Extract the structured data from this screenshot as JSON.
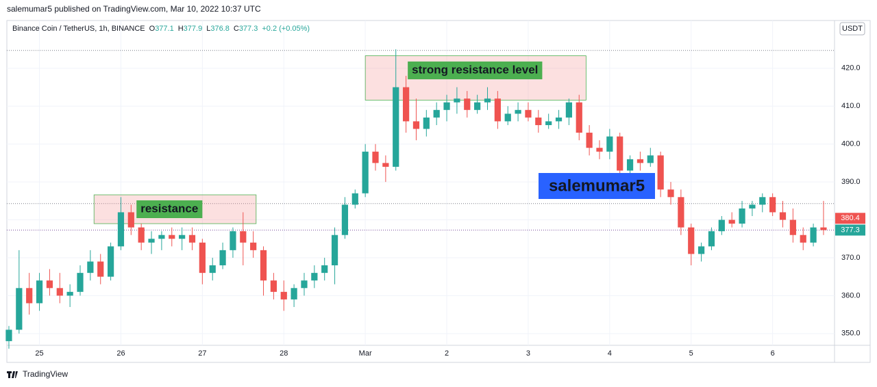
{
  "chart_data": {
    "type": "candlestick",
    "header": "salemumar5 published on TradingView.com, Mar 10, 2022 10:37 UTC",
    "symbol": "Binance Coin / TetherUS, 1h, BINANCE",
    "legend_values": [
      {
        "label": "O",
        "value": "377.1"
      },
      {
        "label": "H",
        "value": "377.9"
      },
      {
        "label": "L",
        "value": "376.8"
      },
      {
        "label": "C",
        "value": "377.3"
      },
      {
        "label": "",
        "value": "+0.2 (+0.05%)"
      }
    ],
    "currency": "USDT",
    "footer": "TradingView",
    "watermark": "salemumar5",
    "up_color": "#26a69a",
    "down_color": "#ef5350",
    "xlim": [
      24.6,
      34.76
    ],
    "xticks": [
      {
        "value": 25,
        "label": "25"
      },
      {
        "value": 26,
        "label": "26"
      },
      {
        "value": 27,
        "label": "27"
      },
      {
        "value": 28,
        "label": "28"
      },
      {
        "value": 29,
        "label": "Mar"
      },
      {
        "value": 30,
        "label": "2"
      },
      {
        "value": 31,
        "label": "3"
      },
      {
        "value": 32,
        "label": "4"
      },
      {
        "value": 33,
        "label": "5"
      },
      {
        "value": 34,
        "label": "6"
      }
    ],
    "ylim": [
      346.9,
      432.6
    ],
    "yticks": [
      {
        "value": 350,
        "label": "350.0"
      },
      {
        "value": 360,
        "label": "360.0"
      },
      {
        "value": 370,
        "label": "370.0"
      },
      {
        "value": 380,
        "label": "380.0"
      },
      {
        "value": 390,
        "label": "390.0"
      },
      {
        "value": 400,
        "label": "400.0"
      },
      {
        "value": 410,
        "label": "410.0"
      },
      {
        "value": 420,
        "label": "420.0"
      }
    ],
    "grid": true,
    "hlines": [
      424.7,
      384.3
    ],
    "last_price_line": 377.3,
    "price_labels": [
      {
        "value": 380.4,
        "color": "#ef5350"
      },
      {
        "value": 377.3,
        "color": "#26a69a"
      }
    ],
    "zones": [
      {
        "label": "strong resistance level",
        "x": [
          29.0,
          31.71
        ],
        "y": [
          411.6,
          423.3
        ]
      },
      {
        "label": "resistance",
        "x": [
          25.67,
          27.66
        ],
        "y": [
          379.0,
          386.6
        ]
      }
    ],
    "x": [
      24.625,
      24.75,
      24.875,
      25.0,
      25.125,
      25.25,
      25.375,
      25.5,
      25.625,
      25.75,
      25.875,
      26.0,
      26.125,
      26.25,
      26.375,
      26.5,
      26.625,
      26.75,
      26.875,
      27.0,
      27.125,
      27.25,
      27.375,
      27.5,
      27.625,
      27.75,
      27.875,
      28.0,
      28.125,
      28.25,
      28.375,
      28.5,
      28.625,
      28.75,
      28.875,
      29.0,
      29.125,
      29.25,
      29.375,
      29.5,
      29.625,
      29.75,
      29.875,
      30.0,
      30.125,
      30.25,
      30.375,
      30.5,
      30.625,
      30.75,
      30.875,
      31.0,
      31.125,
      31.25,
      31.375,
      31.5,
      31.625,
      31.75,
      31.875,
      32.0,
      32.125,
      32.25,
      32.375,
      32.5,
      32.625,
      32.75,
      32.875,
      33.0,
      33.125,
      33.25,
      33.375,
      33.5,
      33.625,
      33.75,
      33.875,
      34.0,
      34.125,
      34.25,
      34.375,
      34.5,
      34.625
    ],
    "ohlc": [
      [
        348,
        352,
        346,
        351
      ],
      [
        351,
        372,
        350,
        362
      ],
      [
        362,
        366,
        355,
        358
      ],
      [
        358,
        366,
        356,
        364
      ],
      [
        364,
        367,
        360,
        362
      ],
      [
        362,
        366,
        358,
        360
      ],
      [
        360,
        363,
        357,
        361
      ],
      [
        361,
        368,
        360,
        366
      ],
      [
        366,
        372,
        364,
        369
      ],
      [
        369,
        371,
        363,
        365
      ],
      [
        365,
        374,
        364,
        373
      ],
      [
        373,
        386,
        372,
        382
      ],
      [
        382,
        384,
        376,
        378
      ],
      [
        378,
        379,
        372,
        374
      ],
      [
        374,
        377,
        371,
        375
      ],
      [
        375,
        377,
        372,
        376
      ],
      [
        376,
        378,
        373,
        375
      ],
      [
        375,
        378,
        372,
        376
      ],
      [
        376,
        378,
        372,
        374
      ],
      [
        374,
        375,
        363,
        366
      ],
      [
        366,
        370,
        364,
        368
      ],
      [
        368,
        374,
        367,
        372
      ],
      [
        372,
        378,
        370,
        377
      ],
      [
        377,
        382,
        368,
        374
      ],
      [
        374,
        377,
        370,
        372
      ],
      [
        372,
        373,
        360,
        364
      ],
      [
        364,
        366,
        359,
        361
      ],
      [
        361,
        364,
        356,
        359
      ],
      [
        359,
        363,
        357,
        362
      ],
      [
        362,
        366,
        360,
        364
      ],
      [
        364,
        368,
        362,
        366
      ],
      [
        366,
        370,
        364,
        368
      ],
      [
        368,
        378,
        363,
        376
      ],
      [
        376,
        386,
        375,
        384
      ],
      [
        384,
        388,
        383,
        387
      ],
      [
        387,
        400,
        386,
        398
      ],
      [
        398,
        400,
        393,
        395
      ],
      [
        395,
        397,
        390,
        394
      ],
      [
        394,
        425,
        393,
        415
      ],
      [
        415,
        418,
        403,
        406
      ],
      [
        406,
        412,
        401,
        404
      ],
      [
        404,
        409,
        402,
        407
      ],
      [
        407,
        411,
        405,
        409
      ],
      [
        409,
        413,
        406,
        411
      ],
      [
        411,
        415,
        408,
        412
      ],
      [
        412,
        414,
        407,
        409
      ],
      [
        409,
        413,
        408,
        411
      ],
      [
        411,
        415,
        409,
        412
      ],
      [
        412,
        414,
        404,
        406
      ],
      [
        406,
        410,
        405,
        408
      ],
      [
        408,
        411,
        406,
        409
      ],
      [
        409,
        411,
        406,
        407
      ],
      [
        407,
        409,
        403,
        405
      ],
      [
        405,
        408,
        404,
        406
      ],
      [
        406,
        409,
        404,
        407
      ],
      [
        407,
        412,
        405,
        411
      ],
      [
        411,
        413,
        401,
        403
      ],
      [
        403,
        405,
        397,
        399
      ],
      [
        399,
        401,
        396,
        398
      ],
      [
        398,
        404,
        396,
        402
      ],
      [
        402,
        403,
        390,
        393
      ],
      [
        393,
        397,
        392,
        396
      ],
      [
        396,
        398,
        393,
        395
      ],
      [
        395,
        399,
        394,
        397
      ],
      [
        397,
        398,
        386,
        388
      ],
      [
        388,
        390,
        384,
        386
      ],
      [
        386,
        388,
        376,
        378
      ],
      [
        378,
        379,
        368,
        371
      ],
      [
        371,
        374,
        369,
        373
      ],
      [
        373,
        378,
        372,
        377
      ],
      [
        377,
        381,
        376,
        380
      ],
      [
        380,
        382,
        378,
        379
      ],
      [
        379,
        385,
        378,
        383
      ],
      [
        383,
        385,
        381,
        384
      ],
      [
        384,
        387,
        382,
        386
      ],
      [
        386,
        387,
        381,
        382
      ],
      [
        382,
        385,
        378,
        380
      ],
      [
        380,
        383,
        374,
        376
      ],
      [
        376,
        378,
        372,
        374
      ],
      [
        374,
        379,
        373,
        378
      ],
      [
        378,
        385,
        376,
        377.3
      ]
    ]
  }
}
